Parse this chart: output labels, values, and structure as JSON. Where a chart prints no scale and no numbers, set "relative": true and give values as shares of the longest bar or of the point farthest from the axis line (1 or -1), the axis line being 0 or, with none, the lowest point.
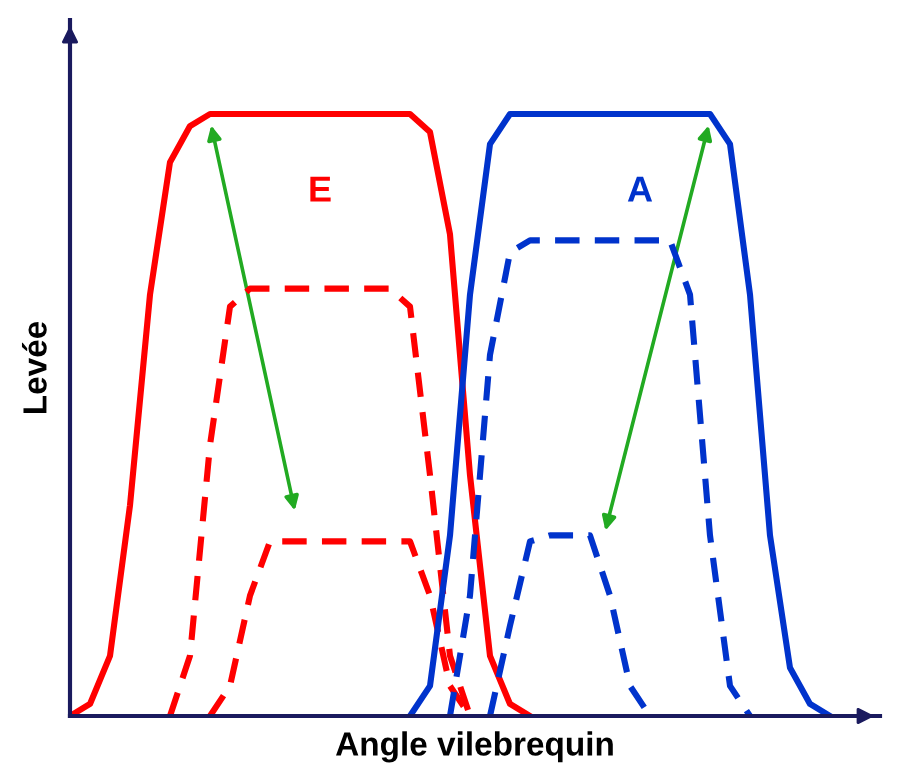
{
  "chart_data": {
    "type": "line",
    "relative": true,
    "xlabel": "Angle vilebrequin",
    "ylabel": "Levée",
    "categories": [
      null,
      null,
      null,
      null,
      null,
      null,
      null,
      null,
      null,
      null,
      null,
      null,
      null,
      null,
      null,
      null,
      null,
      null,
      null,
      null,
      null,
      null,
      null,
      null,
      null,
      null,
      null,
      null,
      null,
      null,
      null,
      null,
      null,
      null,
      null,
      null,
      null,
      null,
      null,
      null,
      null
    ],
    "marker": "none",
    "grid": false,
    "legend": false,
    "series": [
      {
        "name": "E",
        "color": "#ff0000",
        "line_style": "solid",
        "values": [
          0,
          0.02,
          0.1,
          0.35,
          0.7,
          0.92,
          0.98,
          1,
          1,
          1,
          1,
          1,
          1,
          1,
          1,
          1,
          1,
          1,
          0.97,
          0.8,
          0.4,
          0.1,
          0.02,
          0,
          null,
          null,
          null,
          null,
          null,
          null,
          null,
          null,
          null,
          null,
          null,
          null,
          null,
          null,
          null,
          null,
          null
        ]
      },
      {
        "color": "#ff0000",
        "line_style": "dashed",
        "values": [
          null,
          null,
          null,
          null,
          null,
          0,
          0.1,
          0.45,
          0.68,
          0.71,
          0.71,
          0.71,
          0.71,
          0.71,
          0.71,
          0.71,
          0.71,
          0.68,
          0.4,
          0.1,
          0,
          null,
          null,
          null,
          null,
          null,
          null,
          null,
          null,
          null,
          null,
          null,
          null,
          null,
          null,
          null,
          null,
          null,
          null,
          null,
          null
        ]
      },
      {
        "color": "#ff0000",
        "line_style": "dashed",
        "values": [
          null,
          null,
          null,
          null,
          null,
          null,
          null,
          0,
          0.05,
          0.2,
          0.29,
          0.29,
          0.29,
          0.29,
          0.29,
          0.29,
          0.29,
          0.29,
          0.2,
          0.05,
          0,
          null,
          null,
          null,
          null,
          null,
          null,
          null,
          null,
          null,
          null,
          null,
          null,
          null,
          null,
          null,
          null,
          null,
          null,
          null,
          null
        ]
      },
      {
        "name": "A",
        "color": "#0033cc",
        "line_style": "solid",
        "values": [
          null,
          null,
          null,
          null,
          null,
          null,
          null,
          null,
          null,
          null,
          null,
          null,
          null,
          null,
          null,
          null,
          null,
          0,
          0.05,
          0.3,
          0.7,
          0.95,
          1,
          1,
          1,
          1,
          1,
          1,
          1,
          1,
          1,
          1,
          1,
          0.95,
          0.7,
          0.3,
          0.08,
          0.02,
          0,
          null,
          null
        ]
      },
      {
        "color": "#0033cc",
        "line_style": "dashed",
        "values": [
          null,
          null,
          null,
          null,
          null,
          null,
          null,
          null,
          null,
          null,
          null,
          null,
          null,
          null,
          null,
          null,
          null,
          null,
          null,
          0,
          0.2,
          0.6,
          0.77,
          0.79,
          0.79,
          0.79,
          0.79,
          0.79,
          0.79,
          0.79,
          0.79,
          0.7,
          0.3,
          0.05,
          0,
          null,
          null,
          null,
          null,
          null,
          null
        ]
      },
      {
        "color": "#0033cc",
        "line_style": "dashed",
        "values": [
          null,
          null,
          null,
          null,
          null,
          null,
          null,
          null,
          null,
          null,
          null,
          null,
          null,
          null,
          null,
          null,
          null,
          null,
          null,
          null,
          null,
          0,
          0.15,
          0.29,
          0.3,
          0.3,
          0.3,
          0.2,
          0.05,
          0,
          null,
          null,
          null,
          null,
          null,
          null,
          null,
          null,
          null,
          null,
          null
        ]
      }
    ]
  }
}
